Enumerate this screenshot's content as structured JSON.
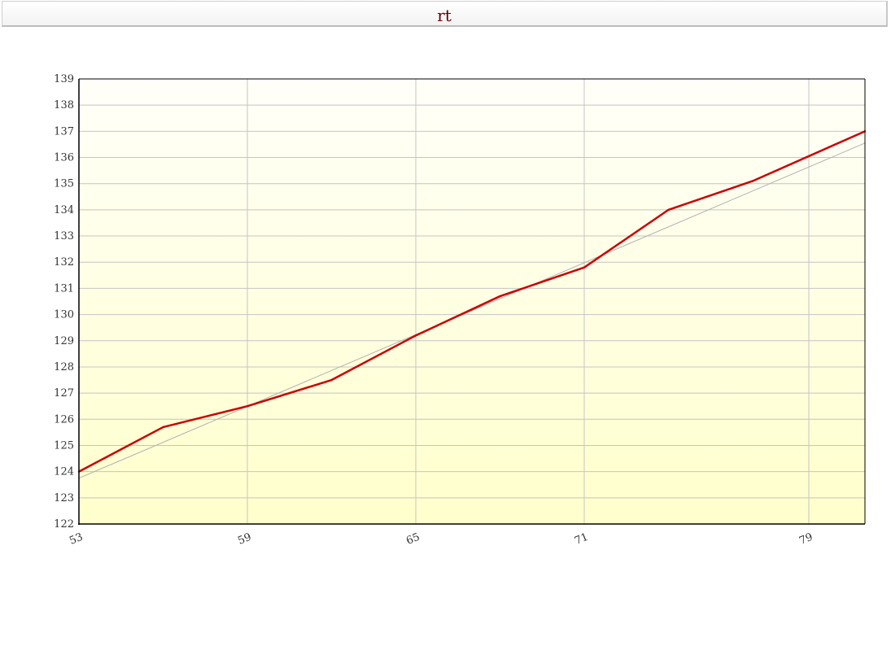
{
  "header": {
    "title": "rt"
  },
  "chart_data": {
    "type": "line",
    "title": "rt",
    "xlabel": "",
    "ylabel": "",
    "xlim": [
      53,
      81
    ],
    "ylim": [
      122,
      139
    ],
    "x_ticks": [
      53,
      59,
      65,
      71,
      79
    ],
    "y_ticks": [
      122,
      123,
      124,
      125,
      126,
      127,
      128,
      129,
      130,
      131,
      132,
      133,
      134,
      135,
      136,
      137,
      138,
      139
    ],
    "grid": true,
    "legend": "none",
    "series": [
      {
        "color": "#cc0000",
        "x": [
          53,
          56,
          59,
          62,
          65,
          68,
          71,
          74,
          77,
          81
        ],
        "y": [
          124.0,
          125.7,
          126.5,
          127.5,
          129.2,
          130.7,
          131.8,
          134.0,
          135.1,
          137.0
        ]
      }
    ],
    "trendline": {
      "color": "#b0b0b0",
      "x": [
        53,
        81
      ],
      "y": [
        123.75,
        136.55
      ]
    },
    "background_gradient": [
      "#fffff9",
      "#ffffcc"
    ]
  }
}
